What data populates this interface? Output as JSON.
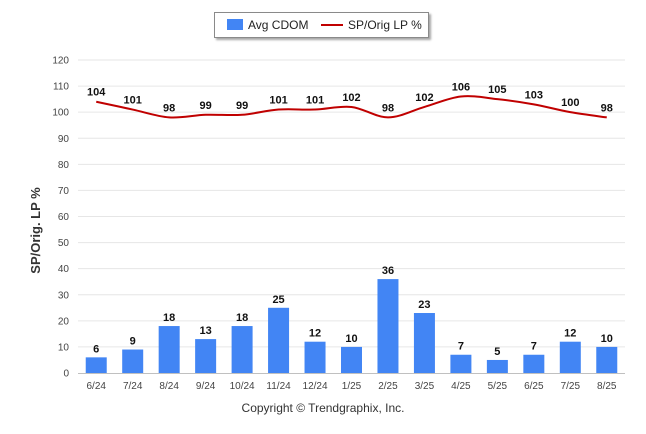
{
  "chart_data": {
    "type": "bar",
    "categories": [
      "6/24",
      "7/24",
      "8/24",
      "9/24",
      "10/24",
      "11/24",
      "12/24",
      "1/25",
      "2/25",
      "3/25",
      "4/25",
      "5/25",
      "6/25",
      "7/25",
      "8/25"
    ],
    "series": [
      {
        "name": "Avg CDOM",
        "type": "bar",
        "color": "#4285f4",
        "values": [
          6,
          9,
          18,
          13,
          18,
          25,
          12,
          10,
          36,
          23,
          7,
          5,
          7,
          12,
          10
        ]
      },
      {
        "name": "SP/Orig LP %",
        "type": "line",
        "color": "#c00000",
        "values": [
          104,
          101,
          98,
          99,
          99,
          101,
          101,
          102,
          98,
          102,
          106,
          105,
          103,
          100,
          98
        ]
      }
    ],
    "ylabel": "SP/Orig. LP %",
    "ylim": [
      0,
      120
    ],
    "yticks": [
      0,
      10,
      20,
      30,
      40,
      50,
      60,
      70,
      80,
      90,
      100,
      110,
      120
    ],
    "grid": true,
    "legend_position": "top-center"
  },
  "footer": {
    "copyright": "Copyright © Trendgraphix, Inc."
  }
}
